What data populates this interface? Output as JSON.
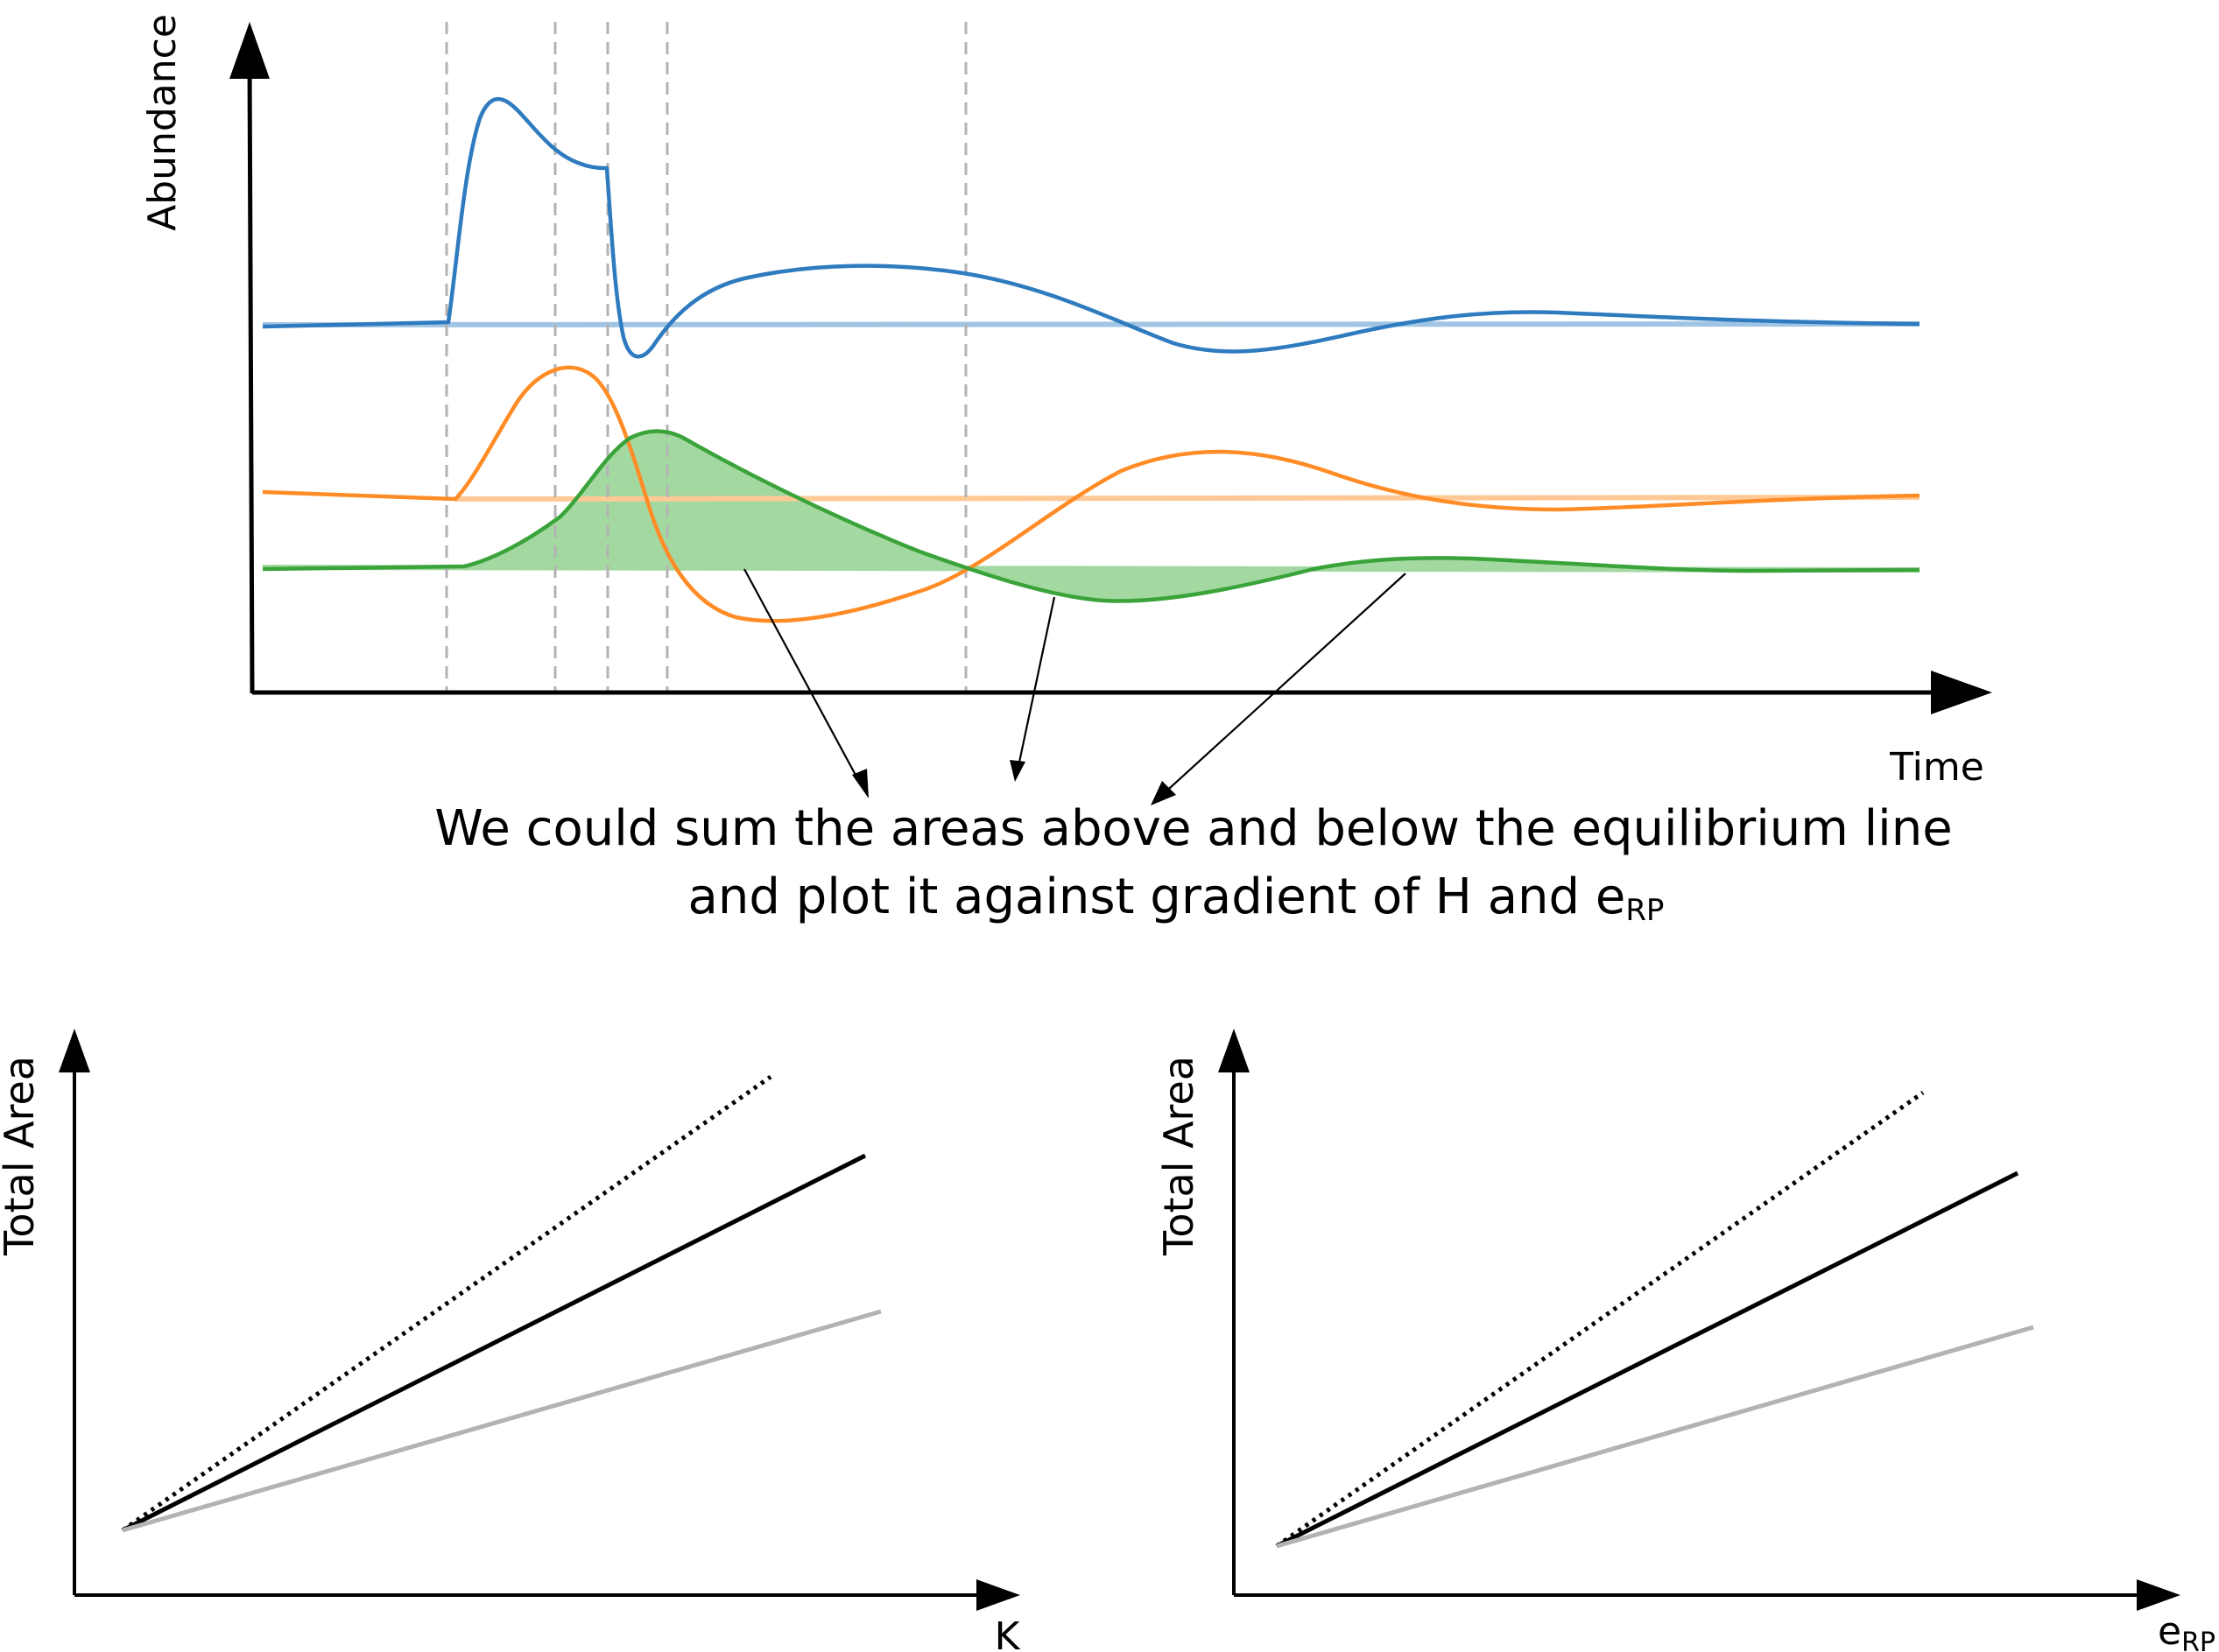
{
  "top_plot": {
    "y_label": "Abundance",
    "x_label": "Time"
  },
  "annotation": {
    "line1": "We could sum the areas above and below the equilibrium line",
    "line2_prefix": "and plot it against gradient of H and e",
    "line2_sub": "RP"
  },
  "bottom_left_plot": {
    "y_label": "Total Area",
    "x_label": "K"
  },
  "bottom_right_plot": {
    "y_label": "Total Area",
    "x_label_main": "e",
    "x_label_sub": "RP"
  },
  "colors": {
    "blue": "#2f7bbf",
    "blue_light": "#9fc4e4",
    "orange": "#ff8c26",
    "orange_light": "#ffc996",
    "green": "#3aa33a",
    "green_fill": "#a3d9a0",
    "gray_line": "#b3b3b3",
    "dashed": "#b3b3b3"
  }
}
